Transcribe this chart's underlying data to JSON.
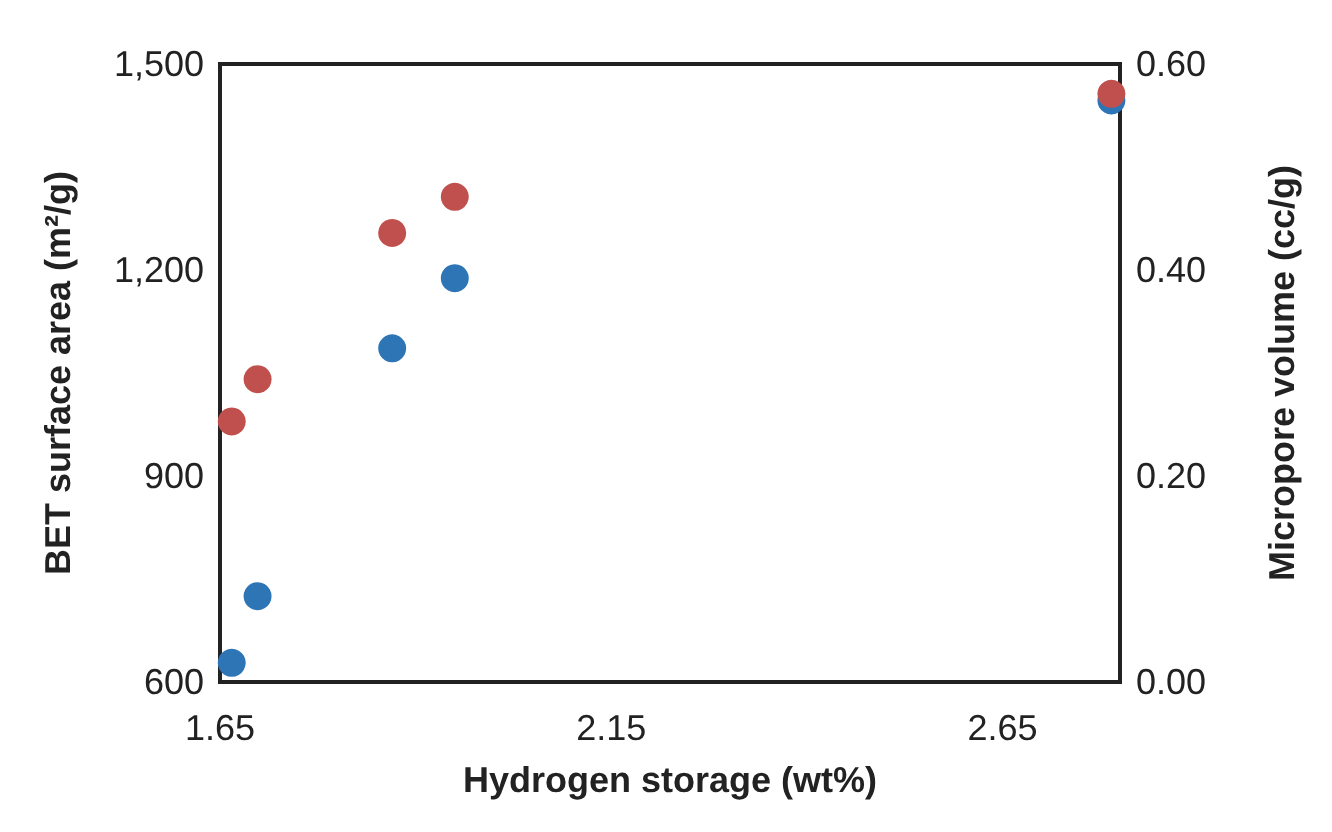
{
  "chart_data": {
    "type": "scatter",
    "xlabel": "Hydrogen storage (wt%)",
    "ylabel": "BET surface area (m²/g)",
    "y2label": "Micropore volume (cc/g)",
    "xlim": [
      1.65,
      2.8
    ],
    "xticks": [
      1.65,
      2.15,
      2.65
    ],
    "ylim": [
      600,
      1500
    ],
    "yticks": [
      600,
      900,
      {
        "value": 1200,
        "label": "1,200"
      },
      {
        "value": 1500,
        "label": "1,500"
      }
    ],
    "y2lim": [
      0,
      0.6
    ],
    "y2ticks": [
      {
        "value": 0,
        "label": "0.00"
      },
      {
        "value": 0.2,
        "label": "0.20"
      },
      {
        "value": 0.4,
        "label": "0.40"
      },
      {
        "value": 0.6,
        "label": "0.60"
      }
    ],
    "grid": false,
    "marker": "circle",
    "series": [
      {
        "color": "#2e75b6",
        "x": [
          1.665,
          1.698,
          1.87,
          1.95,
          2.789
        ],
        "values": [
          628,
          725,
          1086,
          1188,
          1447
        ]
      },
      {
        "color": "#c0504d",
        "axis": "y2",
        "x": [
          1.665,
          1.698,
          1.87,
          1.95,
          2.789
        ],
        "values": [
          0.253,
          0.294,
          0.436,
          0.471,
          0.571
        ]
      }
    ]
  }
}
